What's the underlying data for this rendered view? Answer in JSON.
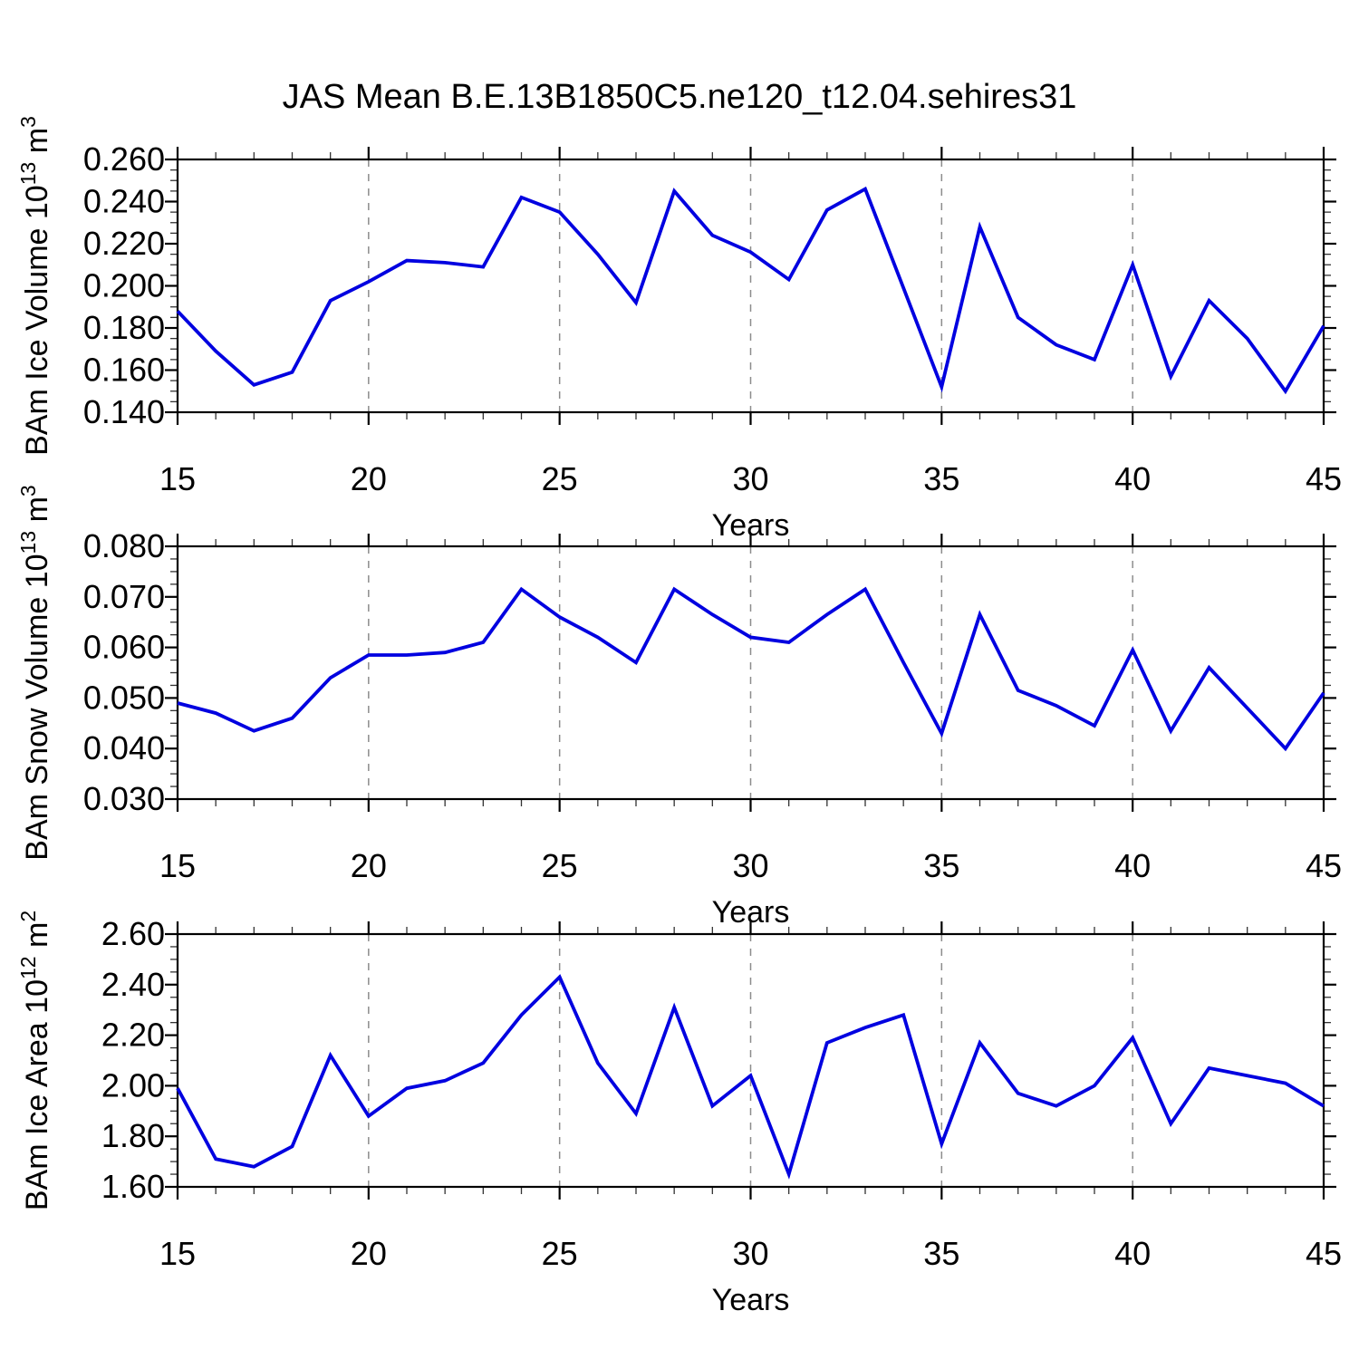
{
  "title": "JAS Mean B.E.13B1850C5.ne120_t12.04.sehires31",
  "colors": {
    "line": "#0000e0",
    "grid": "#8c8c8c",
    "axis": "#000000",
    "minor_tick": "#333333",
    "text": "#000000",
    "background": "#ffffff"
  },
  "chart_data": [
    {
      "type": "line",
      "name": "bam-ice-volume",
      "title": "",
      "xlabel": "Years",
      "ylabel": "BAm Ice Volume 10^13 m^3",
      "legend": "none",
      "grid": "vertical-dashed",
      "grid_x": [
        20,
        25,
        30,
        35,
        40
      ],
      "xlim": [
        15,
        45
      ],
      "xtick_major": 5,
      "xtick_minor": 1,
      "xticks_labeled": [
        15,
        20,
        25,
        30,
        35,
        40,
        45
      ],
      "ylim": [
        0.14,
        0.26
      ],
      "ytick_major": 0.02,
      "ytick_minor": 0.005,
      "ytick_decimals": 3,
      "x": [
        15,
        16,
        17,
        18,
        19,
        20,
        21,
        22,
        23,
        24,
        25,
        26,
        27,
        28,
        29,
        30,
        31,
        32,
        33,
        34,
        35,
        36,
        37,
        38,
        39,
        40,
        41,
        42,
        43,
        44,
        45
      ],
      "values": [
        0.188,
        0.169,
        0.153,
        0.159,
        0.193,
        0.202,
        0.212,
        0.211,
        0.209,
        0.242,
        0.235,
        0.215,
        0.192,
        0.245,
        0.224,
        0.216,
        0.203,
        0.236,
        0.246,
        0.199,
        0.152,
        0.228,
        0.185,
        0.172,
        0.165,
        0.21,
        0.157,
        0.193,
        0.175,
        0.15,
        0.181
      ]
    },
    {
      "type": "line",
      "name": "bam-snow-volume",
      "title": "",
      "xlabel": "Years",
      "ylabel": "BAm Snow Volume 10^13 m^3",
      "legend": "none",
      "grid": "vertical-dashed",
      "grid_x": [
        20,
        25,
        30,
        35,
        40
      ],
      "xlim": [
        15,
        45
      ],
      "xtick_major": 5,
      "xtick_minor": 1,
      "xticks_labeled": [
        15,
        20,
        25,
        30,
        35,
        40,
        45
      ],
      "ylim": [
        0.03,
        0.08
      ],
      "ytick_major": 0.01,
      "ytick_minor": 0.0025,
      "ytick_decimals": 3,
      "x": [
        15,
        16,
        17,
        18,
        19,
        20,
        21,
        22,
        23,
        24,
        25,
        26,
        27,
        28,
        29,
        30,
        31,
        32,
        33,
        34,
        35,
        36,
        37,
        38,
        39,
        40,
        41,
        42,
        43,
        44,
        45
      ],
      "values": [
        0.049,
        0.047,
        0.0435,
        0.046,
        0.054,
        0.0585,
        0.0585,
        0.059,
        0.061,
        0.0715,
        0.066,
        0.062,
        0.057,
        0.0715,
        0.0665,
        0.062,
        0.061,
        0.0665,
        0.0715,
        0.057,
        0.043,
        0.0665,
        0.0515,
        0.0485,
        0.0445,
        0.0595,
        0.0435,
        0.056,
        0.048,
        0.04,
        0.051
      ]
    },
    {
      "type": "line",
      "name": "bam-ice-area",
      "title": "",
      "xlabel": "Years",
      "ylabel": "BAm Ice Area 10^12 m^2",
      "legend": "none",
      "grid": "vertical-dashed",
      "grid_x": [
        20,
        25,
        30,
        35,
        40
      ],
      "xlim": [
        15,
        45
      ],
      "xtick_major": 5,
      "xtick_minor": 1,
      "xticks_labeled": [
        15,
        20,
        25,
        30,
        35,
        40,
        45
      ],
      "ylim": [
        1.6,
        2.6
      ],
      "ytick_major": 0.2,
      "ytick_minor": 0.05,
      "ytick_decimals": 2,
      "x": [
        15,
        16,
        17,
        18,
        19,
        20,
        21,
        22,
        23,
        24,
        25,
        26,
        27,
        28,
        29,
        30,
        31,
        32,
        33,
        34,
        35,
        36,
        37,
        38,
        39,
        40,
        41,
        42,
        43,
        44,
        45
      ],
      "values": [
        1.99,
        1.71,
        1.68,
        1.76,
        2.12,
        1.88,
        1.99,
        2.02,
        2.09,
        2.28,
        2.43,
        2.09,
        1.89,
        2.31,
        1.92,
        2.04,
        1.65,
        2.17,
        2.23,
        2.28,
        1.77,
        2.17,
        1.97,
        1.92,
        2.0,
        2.19,
        1.85,
        2.07,
        2.04,
        2.01,
        1.92
      ]
    }
  ]
}
